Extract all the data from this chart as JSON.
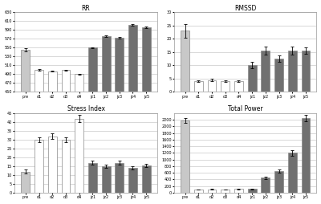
{
  "categories": [
    "pre",
    "d1",
    "d2",
    "d3",
    "d4",
    "jz1",
    "jz2",
    "jz3",
    "jz4",
    "jz5"
  ],
  "RR": {
    "title": "RR",
    "values": [
      545,
      500,
      497,
      499,
      490,
      550,
      576,
      573,
      601,
      596
    ],
    "errors": [
      3.0,
      1.5,
      1.5,
      1.5,
      1.5,
      1.5,
      2.0,
      2.0,
      2.0,
      2.0
    ],
    "ylim": [
      450,
      630
    ],
    "yticks": [
      450,
      470,
      490,
      510,
      530,
      550,
      570,
      590,
      610,
      630
    ]
  },
  "RMSSD": {
    "title": "RMSSD",
    "values": [
      23.0,
      4.0,
      4.5,
      4.0,
      4.0,
      10.0,
      15.5,
      12.5,
      15.5,
      15.5
    ],
    "errors": [
      2.5,
      0.4,
      0.5,
      0.4,
      0.4,
      1.2,
      1.5,
      1.2,
      1.5,
      1.2
    ],
    "ylim": [
      0,
      30
    ],
    "yticks": [
      0,
      5,
      10,
      15,
      20,
      25,
      30
    ]
  },
  "StressIndex": {
    "title": "Stress Index",
    "values": [
      12,
      30,
      32,
      30,
      42,
      17,
      15,
      17,
      14,
      15.5
    ],
    "errors": [
      1.0,
      1.5,
      1.5,
      1.5,
      2.0,
      1.2,
      1.0,
      1.2,
      1.0,
      1.0
    ],
    "ylim": [
      0,
      45
    ],
    "yticks": [
      0,
      5,
      10,
      15,
      20,
      25,
      30,
      35,
      40,
      45
    ]
  },
  "TotalPower": {
    "title": "Total Power",
    "values": [
      2180,
      100,
      105,
      95,
      110,
      110,
      450,
      650,
      1200,
      2250
    ],
    "errors": [
      80,
      8,
      8,
      8,
      8,
      12,
      40,
      55,
      90,
      100
    ],
    "ylim": [
      0,
      2400
    ],
    "yticks": [
      0,
      200,
      400,
      600,
      800,
      1000,
      1200,
      1400,
      1600,
      1800,
      2000,
      2200
    ]
  },
  "colors": {
    "pre": "#c8c8c8",
    "d": "#ffffff",
    "jz": "#707070"
  },
  "edge_color": "#888888",
  "bar_width": 0.65,
  "tick_labels": [
    "pre",
    "d1",
    "d2",
    "d3",
    "d4",
    "jz1",
    "jz2",
    "jz3",
    "jz4",
    "jz5"
  ]
}
